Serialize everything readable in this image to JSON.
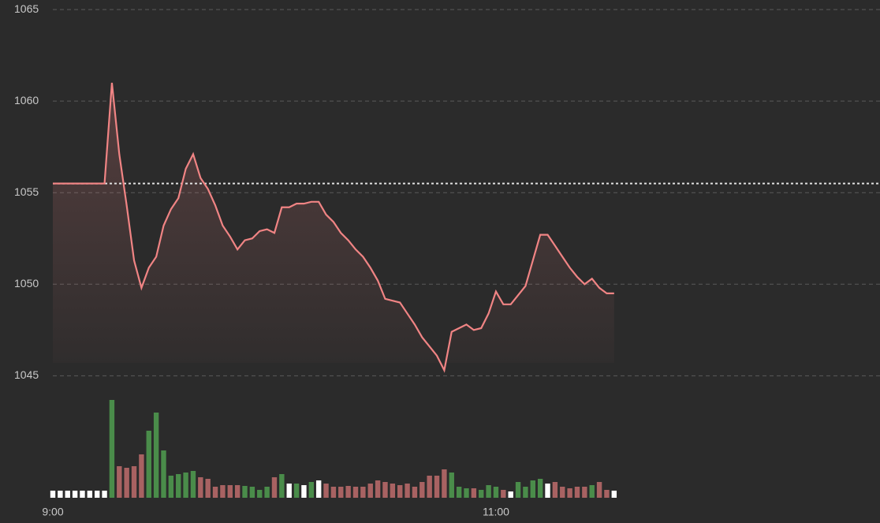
{
  "chart_data": {
    "type": "line",
    "x": [
      0,
      2,
      4,
      6,
      8,
      10,
      12,
      14,
      16,
      18,
      20,
      22,
      24,
      26,
      28,
      30,
      32,
      34,
      36,
      38,
      40,
      42,
      44,
      46,
      48,
      50,
      52,
      54,
      56,
      58,
      60,
      62,
      64,
      66,
      68,
      70,
      72,
      74,
      76,
      78,
      80,
      82,
      84,
      86,
      88,
      90,
      92,
      94,
      96,
      98,
      100,
      102,
      104,
      106,
      108,
      110,
      112,
      114,
      116,
      118,
      120,
      122,
      124,
      126,
      128,
      130,
      132,
      134,
      136,
      138,
      140,
      142,
      144,
      146,
      148,
      150,
      152
    ],
    "values": [
      1055.5,
      1055.5,
      1055.5,
      1055.5,
      1055.5,
      1055.5,
      1055.5,
      1055.5,
      1061.0,
      1057.1,
      1054.3,
      1051.3,
      1049.8,
      1050.9,
      1051.5,
      1053.2,
      1054.1,
      1054.7,
      1056.3,
      1057.1,
      1055.8,
      1055.2,
      1054.3,
      1053.2,
      1052.6,
      1051.9,
      1052.4,
      1052.5,
      1052.9,
      1053.0,
      1052.8,
      1054.2,
      1054.2,
      1054.4,
      1054.4,
      1054.5,
      1054.5,
      1053.8,
      1053.4,
      1052.8,
      1052.4,
      1051.9,
      1051.5,
      1050.9,
      1050.2,
      1049.2,
      1049.1,
      1049.0,
      1048.4,
      1047.8,
      1047.1,
      1046.6,
      1046.1,
      1045.3,
      1047.4,
      1047.6,
      1047.8,
      1047.5,
      1047.6,
      1048.4,
      1049.6,
      1048.9,
      1048.9,
      1049.4,
      1049.9,
      1051.3,
      1052.7,
      1052.7,
      1052.1,
      1051.5,
      1050.9,
      1050.4,
      1050.0,
      1050.3,
      1049.8,
      1049.5,
      1049.5
    ],
    "volume": [
      9,
      9,
      9,
      9,
      9,
      9,
      9,
      9,
      124,
      40,
      38,
      40,
      55,
      85,
      108,
      60,
      28,
      30,
      32,
      34,
      26,
      24,
      14,
      16,
      16,
      16,
      15,
      14,
      10,
      14,
      26,
      30,
      18,
      18,
      16,
      20,
      22,
      18,
      14,
      14,
      15,
      14,
      14,
      18,
      22,
      20,
      18,
      16,
      18,
      14,
      20,
      28,
      28,
      36,
      32,
      14,
      12,
      12,
      10,
      16,
      14,
      10,
      8,
      20,
      14,
      22,
      24,
      18,
      20,
      14,
      12,
      14,
      14,
      16,
      20,
      10,
      9
    ],
    "color": "#f08484",
    "up_color": "#4a8c4a",
    "down_color": "#a86262",
    "flat_color": "#ffffff",
    "reference": 1055.5,
    "xlim": [
      0,
      224
    ],
    "xticks": [
      {
        "value": 0,
        "label": "9:00"
      },
      {
        "value": 120,
        "label": "11:00"
      }
    ],
    "ylim": [
      1044.8,
      1065.52
    ],
    "yticks": [
      1045,
      1050,
      1055,
      1060,
      1065
    ],
    "grid": true
  }
}
